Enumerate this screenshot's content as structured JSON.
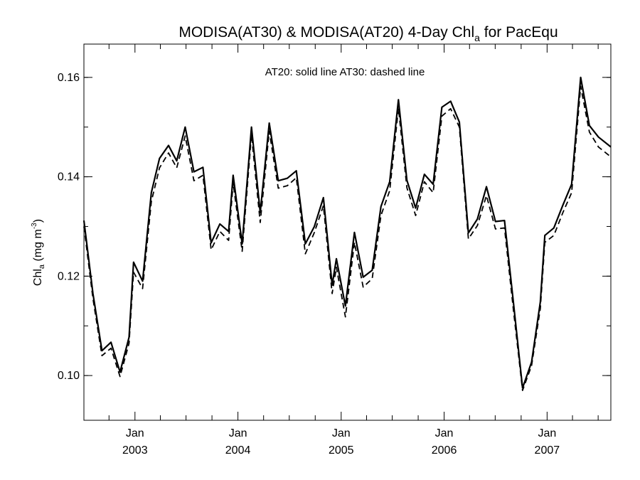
{
  "chart_data": {
    "type": "line",
    "title_main": "MODISA(AT30) & MODISA(AT20) 4-Day Chl",
    "title_sub": "a",
    "title_tail": " for PacEqu",
    "annotation": "AT20: solid line   AT30: dashed line",
    "ylabel_main": "Chl",
    "ylabel_sub": "a",
    "ylabel_unit": " (mg m",
    "ylabel_sup": "-3",
    "ylabel_close": ")",
    "ylim": [
      0.091,
      0.1667
    ],
    "xlim": [
      "2002-07-04",
      "2007-08-15"
    ],
    "yticks": [
      0.1,
      0.12,
      0.14,
      0.16
    ],
    "ytick_labels": [
      "0.10",
      "0.12",
      "0.14",
      "0.16"
    ],
    "xticks": [
      {
        "date": "2003-01-01",
        "month": "Jan",
        "year": "2003"
      },
      {
        "date": "2004-01-01",
        "month": "Jan",
        "year": "2004"
      },
      {
        "date": "2005-01-01",
        "month": "Jan",
        "year": "2005"
      },
      {
        "date": "2006-01-01",
        "month": "Jan",
        "year": "2006"
      },
      {
        "date": "2007-01-01",
        "month": "Jan",
        "year": "2007"
      }
    ],
    "grid": false,
    "series": [
      {
        "style": "solid",
        "points": [
          [
            "2002-07-04",
            0.1312
          ],
          [
            "2002-08-05",
            0.1165
          ],
          [
            "2002-09-06",
            0.105
          ],
          [
            "2002-10-08",
            0.1067
          ],
          [
            "2002-11-09",
            0.1007
          ],
          [
            "2002-12-11",
            0.1077
          ],
          [
            "2002-12-27",
            0.1228
          ],
          [
            "2003-01-28",
            0.119
          ],
          [
            "2003-02-28",
            0.1368
          ],
          [
            "2003-03-29",
            0.1437
          ],
          [
            "2003-04-30",
            0.1463
          ],
          [
            "2003-05-29",
            0.1432
          ],
          [
            "2003-06-28",
            0.15
          ],
          [
            "2003-07-29",
            0.141
          ],
          [
            "2003-08-30",
            0.1419
          ],
          [
            "2003-09-28",
            0.1267
          ],
          [
            "2003-10-29",
            0.1305
          ],
          [
            "2003-11-29",
            0.129
          ],
          [
            "2003-12-15",
            0.1403
          ],
          [
            "2004-01-16",
            0.1265
          ],
          [
            "2004-02-18",
            0.15
          ],
          [
            "2004-03-20",
            0.1328
          ],
          [
            "2004-04-21",
            0.1508
          ],
          [
            "2004-05-23",
            0.1392
          ],
          [
            "2004-06-24",
            0.1397
          ],
          [
            "2004-07-26",
            0.1412
          ],
          [
            "2004-08-27",
            0.1265
          ],
          [
            "2004-09-28",
            0.13
          ],
          [
            "2004-10-30",
            0.1358
          ],
          [
            "2004-11-30",
            0.1182
          ],
          [
            "2004-12-15",
            0.1235
          ],
          [
            "2005-01-16",
            0.114
          ],
          [
            "2005-02-17",
            0.1288
          ],
          [
            "2005-03-20",
            0.1198
          ],
          [
            "2005-04-21",
            0.1212
          ],
          [
            "2005-05-22",
            0.134
          ],
          [
            "2005-06-22",
            0.139
          ],
          [
            "2005-07-23",
            0.1555
          ],
          [
            "2005-08-22",
            0.1393
          ],
          [
            "2005-09-22",
            0.1337
          ],
          [
            "2005-10-23",
            0.1405
          ],
          [
            "2005-11-23",
            0.1385
          ],
          [
            "2005-12-24",
            0.154
          ],
          [
            "2006-01-24",
            0.1552
          ],
          [
            "2006-02-24",
            0.151
          ],
          [
            "2006-03-28",
            0.1287
          ],
          [
            "2006-04-29",
            0.1315
          ],
          [
            "2006-05-31",
            0.138
          ],
          [
            "2006-07-02",
            0.131
          ],
          [
            "2006-08-03",
            0.1312
          ],
          [
            "2006-09-04",
            0.1145
          ],
          [
            "2006-10-06",
            0.0975
          ],
          [
            "2006-11-07",
            0.1027
          ],
          [
            "2006-12-08",
            0.1148
          ],
          [
            "2006-12-24",
            0.1282
          ],
          [
            "2007-01-25",
            0.1297
          ],
          [
            "2007-02-26",
            0.1343
          ],
          [
            "2007-03-29",
            0.1385
          ],
          [
            "2007-04-30",
            0.16
          ],
          [
            "2007-05-31",
            0.1503
          ],
          [
            "2007-07-02",
            0.148
          ],
          [
            "2007-08-15",
            0.146
          ]
        ]
      },
      {
        "style": "dashed",
        "points": [
          [
            "2002-07-04",
            0.13
          ],
          [
            "2002-08-05",
            0.1155
          ],
          [
            "2002-09-06",
            0.104
          ],
          [
            "2002-10-08",
            0.1055
          ],
          [
            "2002-11-09",
            0.0998
          ],
          [
            "2002-12-11",
            0.1065
          ],
          [
            "2002-12-27",
            0.1208
          ],
          [
            "2003-01-28",
            0.1175
          ],
          [
            "2003-02-28",
            0.135
          ],
          [
            "2003-03-29",
            0.1418
          ],
          [
            "2003-04-30",
            0.1448
          ],
          [
            "2003-05-29",
            0.1418
          ],
          [
            "2003-06-28",
            0.1482
          ],
          [
            "2003-07-29",
            0.1392
          ],
          [
            "2003-08-30",
            0.1403
          ],
          [
            "2003-09-28",
            0.1253
          ],
          [
            "2003-10-29",
            0.129
          ],
          [
            "2003-11-29",
            0.1272
          ],
          [
            "2003-12-15",
            0.1388
          ],
          [
            "2004-01-16",
            0.125
          ],
          [
            "2004-02-18",
            0.1485
          ],
          [
            "2004-03-20",
            0.1308
          ],
          [
            "2004-04-21",
            0.1492
          ],
          [
            "2004-05-23",
            0.1377
          ],
          [
            "2004-06-24",
            0.1382
          ],
          [
            "2004-07-26",
            0.1398
          ],
          [
            "2004-08-27",
            0.1245
          ],
          [
            "2004-09-28",
            0.1288
          ],
          [
            "2004-10-30",
            0.1342
          ],
          [
            "2004-11-30",
            0.1165
          ],
          [
            "2004-12-15",
            0.1218
          ],
          [
            "2005-01-16",
            0.1118
          ],
          [
            "2005-02-17",
            0.1268
          ],
          [
            "2005-03-20",
            0.1178
          ],
          [
            "2005-04-21",
            0.1195
          ],
          [
            "2005-05-22",
            0.1322
          ],
          [
            "2005-06-22",
            0.1372
          ],
          [
            "2005-07-23",
            0.1538
          ],
          [
            "2005-08-22",
            0.1378
          ],
          [
            "2005-09-22",
            0.1322
          ],
          [
            "2005-10-23",
            0.139
          ],
          [
            "2005-11-23",
            0.1368
          ],
          [
            "2005-12-24",
            0.1522
          ],
          [
            "2006-01-24",
            0.1537
          ],
          [
            "2006-02-24",
            0.15
          ],
          [
            "2006-03-28",
            0.1275
          ],
          [
            "2006-04-29",
            0.1302
          ],
          [
            "2006-05-31",
            0.1362
          ],
          [
            "2006-07-02",
            0.1295
          ],
          [
            "2006-08-03",
            0.1297
          ],
          [
            "2006-09-04",
            0.113
          ],
          [
            "2006-10-06",
            0.097
          ],
          [
            "2006-11-07",
            0.102
          ],
          [
            "2006-12-08",
            0.1135
          ],
          [
            "2006-12-24",
            0.1268
          ],
          [
            "2007-01-25",
            0.1282
          ],
          [
            "2007-02-26",
            0.1328
          ],
          [
            "2007-03-29",
            0.1368
          ],
          [
            "2007-04-30",
            0.1582
          ],
          [
            "2007-05-31",
            0.149
          ],
          [
            "2007-07-02",
            0.146
          ],
          [
            "2007-08-15",
            0.144
          ]
        ]
      }
    ]
  },
  "colors": {
    "line": "#000000",
    "axis": "#000000",
    "background": "#ffffff"
  }
}
